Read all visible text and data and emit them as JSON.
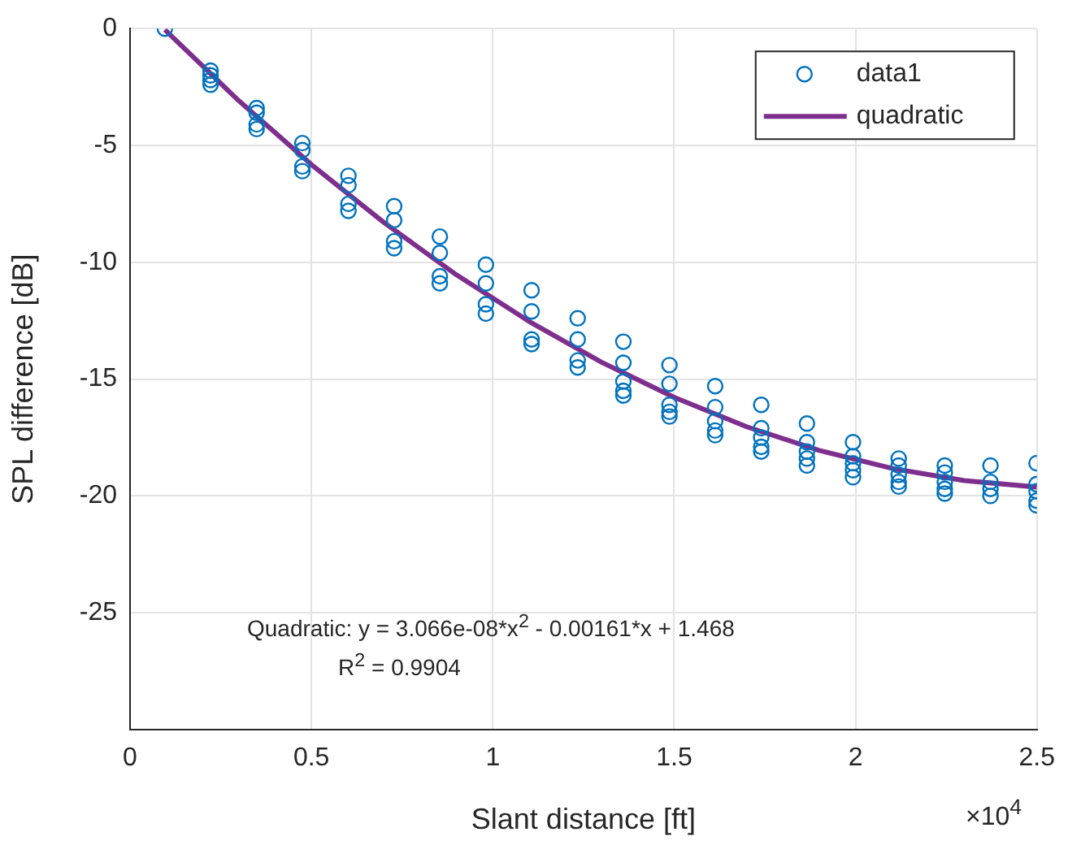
{
  "chart_data": {
    "type": "scatter",
    "xlabel": "Slant distance [ft]",
    "ylabel": "SPL difference [dB]",
    "xlim": [
      0,
      2.5
    ],
    "xticks": [
      0,
      0.5,
      1,
      1.5,
      2,
      2.5
    ],
    "ylim": [
      -30,
      0
    ],
    "yticks": [
      0,
      -5,
      -10,
      -15,
      -20,
      -25
    ],
    "grid": true,
    "legend": "top right",
    "annotations": [
      "Quadratic:  y = 3.066e-08*x$^{2}$ - 0.00161*x + 1.468",
      "R$^{2}$ = 0.9904",
      "×10$^{4}$"
    ],
    "series": [
      {
        "name": "data1",
        "color": "#0072bd",
        "marker": "circle",
        "x": [
          0.096,
          0.222,
          0.222,
          0.222,
          0.222,
          0.349,
          0.349,
          0.349,
          0.349,
          0.475,
          0.475,
          0.475,
          0.475,
          0.602,
          0.602,
          0.602,
          0.602,
          0.728,
          0.728,
          0.728,
          0.728,
          0.854,
          0.854,
          0.854,
          0.854,
          0.981,
          0.981,
          0.981,
          0.981,
          1.107,
          1.107,
          1.107,
          1.107,
          1.234,
          1.234,
          1.234,
          1.234,
          1.36,
          1.36,
          1.36,
          1.36,
          1.36,
          1.487,
          1.487,
          1.487,
          1.487,
          1.487,
          1.613,
          1.613,
          1.613,
          1.613,
          1.613,
          1.74,
          1.74,
          1.74,
          1.74,
          1.74,
          1.866,
          1.866,
          1.866,
          1.866,
          1.866,
          1.993,
          1.993,
          1.993,
          1.993,
          1.993,
          2.119,
          2.119,
          2.119,
          2.119,
          2.119,
          2.246,
          2.246,
          2.246,
          2.246,
          2.246,
          2.372,
          2.372,
          2.372,
          2.372,
          2.499,
          2.499,
          2.499,
          2.499,
          2.499
        ],
        "values": [
          0,
          -1.8,
          -2.0,
          -2.2,
          -2.4,
          -3.4,
          -3.6,
          -4.1,
          -4.3,
          -4.9,
          -5.2,
          -5.9,
          -6.1,
          -6.3,
          -6.7,
          -7.5,
          -7.8,
          -7.6,
          -8.2,
          -9.1,
          -9.4,
          -8.9,
          -9.6,
          -10.6,
          -10.9,
          -10.1,
          -10.9,
          -11.8,
          -12.2,
          -11.2,
          -12.1,
          -13.3,
          -13.5,
          -12.4,
          -13.3,
          -14.2,
          -14.5,
          -13.4,
          -14.3,
          -15.1,
          -15.5,
          -15.7,
          -14.4,
          -15.2,
          -16.1,
          -16.4,
          -16.6,
          -15.3,
          -16.2,
          -16.8,
          -17.2,
          -17.4,
          -16.1,
          -17.1,
          -17.5,
          -17.9,
          -18.1,
          -16.9,
          -17.7,
          -18.1,
          -18.4,
          -18.7,
          -17.7,
          -18.3,
          -18.6,
          -18.9,
          -19.2,
          -18.4,
          -18.7,
          -19.1,
          -19.4,
          -19.6,
          -18.7,
          -19.0,
          -19.4,
          -19.7,
          -19.9,
          -18.7,
          -19.4,
          -19.7,
          -20.0,
          -18.6,
          -19.5,
          -19.8,
          -20.2,
          -20.4
        ]
      },
      {
        "name": "quadratic",
        "type": "line",
        "color": "#7e2f8e",
        "marker": "none",
        "line_style": "solid",
        "x": [
          0.096,
          0.3,
          0.5,
          0.7,
          0.9,
          1.1,
          1.3,
          1.5,
          1.7,
          1.9,
          2.1,
          2.3,
          2.5
        ],
        "values": [
          -0.05,
          -3.09,
          -5.82,
          -8.3,
          -10.54,
          -12.53,
          -14.28,
          -15.78,
          -17.04,
          -18.05,
          -18.82,
          -19.34,
          -19.62
        ]
      }
    ]
  }
}
